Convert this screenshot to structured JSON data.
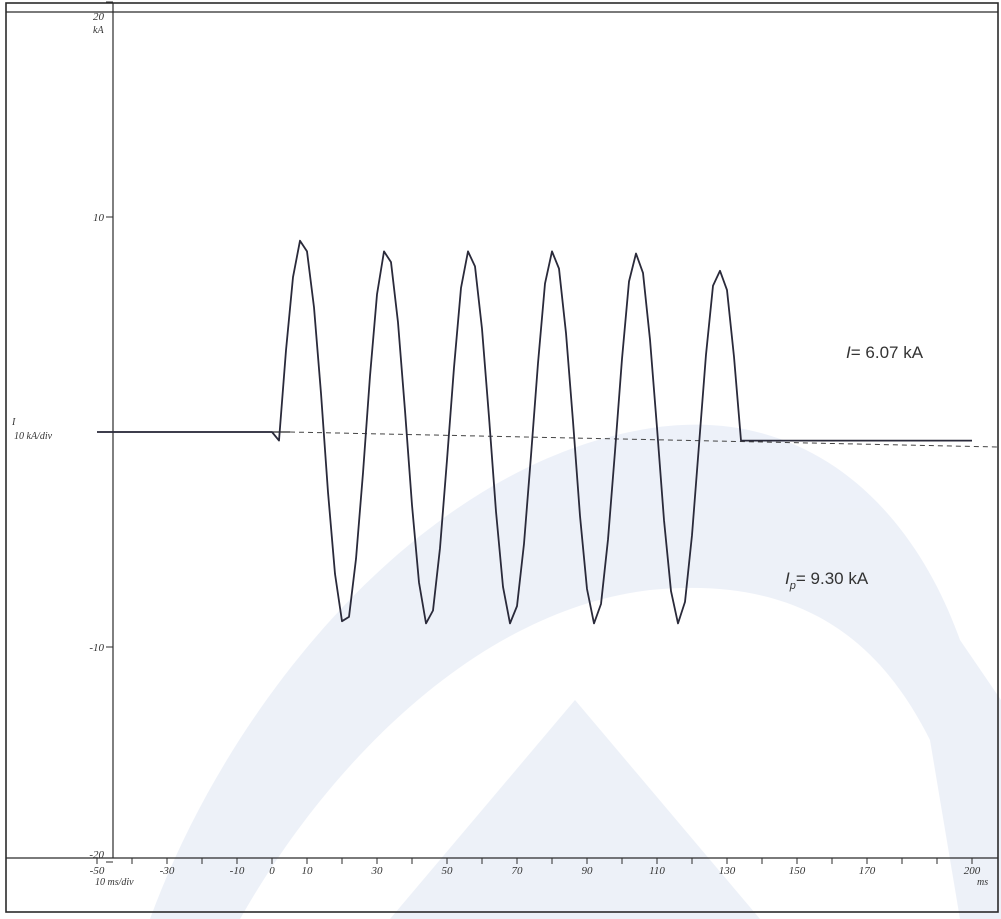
{
  "chart_data": {
    "type": "line",
    "series": [
      {
        "values_description": "",
        "x": [
          -50,
          -40,
          -30,
          -20,
          -10,
          0,
          2,
          4,
          6,
          8,
          10,
          12,
          14,
          16,
          18,
          20,
          22,
          24,
          26,
          28,
          30,
          32,
          34,
          36,
          38,
          40,
          42,
          44,
          46,
          48,
          50,
          52,
          54,
          56,
          58,
          60,
          62,
          64,
          66,
          68,
          70,
          72,
          74,
          76,
          78,
          80,
          82,
          84,
          86,
          88,
          90,
          92,
          94,
          96,
          98,
          100,
          102,
          104,
          106,
          108,
          110,
          112,
          114,
          116,
          118,
          120,
          122,
          124,
          126,
          128,
          130,
          132,
          134,
          136,
          140,
          150,
          160,
          170,
          180,
          190,
          200
        ],
        "y": [
          0,
          0,
          0,
          0,
          0,
          0,
          -0.4,
          3.8,
          7.2,
          8.9,
          8.4,
          5.8,
          1.8,
          -2.8,
          -6.6,
          -8.8,
          -8.6,
          -5.9,
          -1.9,
          2.6,
          6.4,
          8.4,
          7.9,
          5.1,
          1.0,
          -3.4,
          -7.0,
          -8.9,
          -8.3,
          -5.4,
          -1.3,
          3.0,
          6.7,
          8.4,
          7.7,
          4.8,
          0.7,
          -3.7,
          -7.2,
          -8.9,
          -8.1,
          -5.2,
          -1.1,
          3.2,
          6.9,
          8.4,
          7.6,
          4.6,
          0.5,
          -3.9,
          -7.3,
          -8.9,
          -8.0,
          -5.0,
          -0.9,
          3.4,
          7.0,
          8.3,
          7.4,
          4.3,
          0.2,
          -4.1,
          -7.4,
          -8.9,
          -7.9,
          -4.8,
          -0.6,
          3.6,
          6.8,
          7.5,
          6.6,
          3.5,
          -0.4,
          -0.4,
          -0.4,
          -0.4,
          -0.4,
          -0.4,
          -0.4,
          -0.4,
          -0.4
        ]
      }
    ],
    "x_axis": {
      "tick_values": [
        -50,
        -30,
        -10,
        0,
        10,
        30,
        50,
        70,
        90,
        110,
        130,
        150,
        170,
        200
      ],
      "tick_labels": [
        "-50",
        "-30",
        "-10",
        "0",
        "10",
        "30",
        "50",
        "70",
        "90",
        "110",
        "130",
        "150",
        "170",
        "200"
      ],
      "range": [
        -50,
        200
      ],
      "scale_label": "10 ms/div",
      "unit": "ms"
    },
    "y_axis": {
      "tick_values": [
        20,
        10,
        -10,
        -20
      ],
      "tick_labels": [
        "20",
        "10",
        "-10",
        "-20"
      ],
      "range": [
        -20,
        20
      ],
      "unit": "kA",
      "channel": "I",
      "scale_label": "10 kA/div"
    },
    "annotations": [
      {
        "symbol": "I",
        "subscript": "",
        "text": "= 6.07 kA"
      },
      {
        "symbol": "I",
        "subscript": "p",
        "text": "= 9.30 kA"
      }
    ],
    "colors": {
      "trace": "#2a2a3a",
      "grid": "#444444",
      "watermark": "#c9d4ea"
    }
  }
}
